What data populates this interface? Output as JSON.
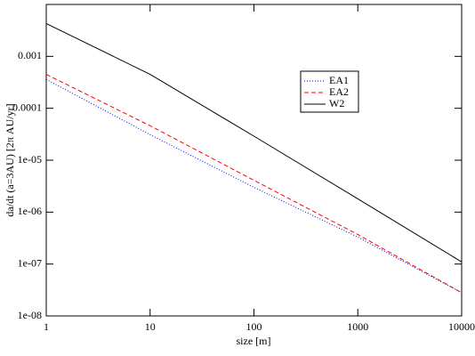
{
  "chart_data": {
    "type": "line",
    "xlabel": "size [m]",
    "ylabel": "da/dt (a=3AU) [2π AU/yr]",
    "xlog": true,
    "ylog": true,
    "x": [
      1,
      10,
      100,
      1000,
      10000
    ],
    "series": [
      {
        "name": "EA1",
        "color": "#0000ff",
        "dash": "dotted",
        "values": [
          0.00036,
          3.1e-05,
          3e-06,
          3.3e-07,
          2.8e-08
        ]
      },
      {
        "name": "EA2",
        "color": "#ff0000",
        "dash": "dashed",
        "values": [
          0.00045,
          4.6e-05,
          4.1e-06,
          3.7e-07,
          2.8e-08
        ]
      },
      {
        "name": "W2",
        "color": "#000000",
        "dash": "solid",
        "values": [
          0.0043,
          0.00045,
          2.9e-05,
          1.8e-06,
          1.1e-07
        ]
      }
    ],
    "xlim": [
      1,
      10000
    ],
    "xticks": [
      1,
      10,
      100,
      1000,
      10000
    ],
    "ylim": [
      1e-08,
      0.01
    ],
    "yticks": [
      {
        "value": 1e-08,
        "label": "1e-08"
      },
      {
        "value": 1e-07,
        "label": "1e-07"
      },
      {
        "value": 1e-06,
        "label": "1e-06"
      },
      {
        "value": 1e-05,
        "label": "1e-05"
      },
      0.0001,
      0.001
    ]
  }
}
